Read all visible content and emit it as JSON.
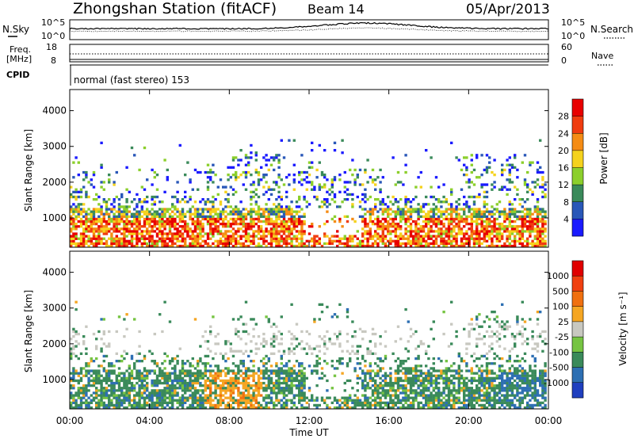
{
  "header": {
    "station": "Zhongshan Station (fitACF)",
    "beam": "Beam 14",
    "date": "05/Apr/2013"
  },
  "noise_panel": {
    "left_label": "N.Sky",
    "right_label": "N.Search",
    "tick_top": "10^5",
    "tick_bottom": "10^0"
  },
  "freq_panel": {
    "left_label_line1": "Freq.",
    "left_label_line2": "[MHz]",
    "left_tick_top": "18",
    "left_tick_bottom": "8",
    "right_label": "Nave",
    "right_tick_top": "60",
    "right_tick_bottom": "0"
  },
  "cpid": {
    "label": "CPID",
    "program": "normal (fast stereo) 153"
  },
  "chart_data": [
    {
      "type": "heatmap",
      "name": "power",
      "ylabel": "Slant Range [km]",
      "yticks": [
        "1000",
        "2000",
        "3000",
        "4000"
      ],
      "ylim": [
        180,
        4590
      ],
      "colorbar_label": "Power [dB]",
      "colorbar_ticks": [
        "4",
        "8",
        "12",
        "16",
        "20",
        "24",
        "28"
      ],
      "colorbar_colors": [
        "#1a1aff",
        "#2957b8",
        "#3a8a5a",
        "#8ccf2c",
        "#f5d21d",
        "#f58c14",
        "#f03c0f",
        "#e80000"
      ]
    },
    {
      "type": "heatmap",
      "name": "velocity",
      "ylabel": "Slant Range [km]",
      "yticks": [
        "1000",
        "2000",
        "3000",
        "4000"
      ],
      "ylim": [
        180,
        4590
      ],
      "colorbar_label": "Velocity [m s⁻¹]",
      "colorbar_ticks": [
        "1000",
        "500",
        "100",
        "25",
        "-25",
        "-100",
        "-500",
        "-1000"
      ],
      "colorbar_colors": [
        "#1f3fbf",
        "#2d6fb3",
        "#3a8a5a",
        "#76c442",
        "#c8c8c0",
        "#f5a623",
        "#f07010",
        "#f04010",
        "#e00000"
      ]
    }
  ],
  "time_axis": {
    "label": "Time UT",
    "ticks": [
      "00:00",
      "04:00",
      "08:00",
      "12:00",
      "16:00",
      "20:00",
      "00:00"
    ]
  }
}
